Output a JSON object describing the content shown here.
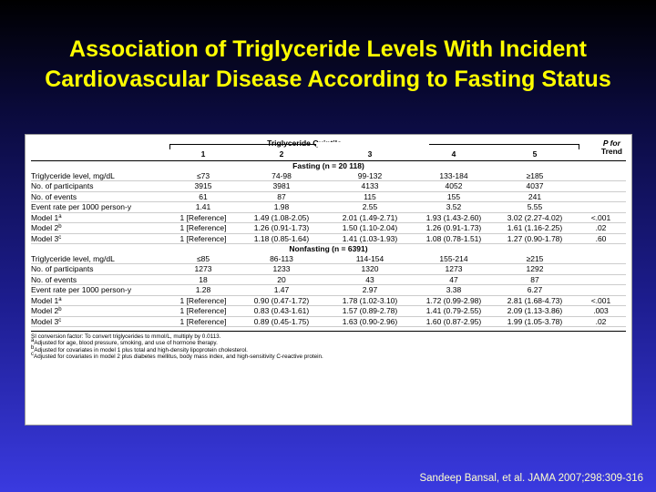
{
  "title": {
    "line1": "Association of Triglyceride Levels With Incident",
    "line2": "Cardiovascular Disease According to Fasting Status"
  },
  "table": {
    "quintile_header": "Triglyceride Quintile",
    "p_header_1": "P for",
    "p_header_2": "Trend",
    "columns": [
      "1",
      "2",
      "3",
      "4",
      "5"
    ],
    "sections": [
      {
        "header": "Fasting (n = 20 118)",
        "rows": [
          {
            "label": "Triglyceride level, mg/dL",
            "sup": "",
            "cells": [
              "≤73",
              "74-98",
              "99-132",
              "133-184",
              "≥185",
              ""
            ]
          },
          {
            "label": "No. of participants",
            "sup": "",
            "cells": [
              "3915",
              "3981",
              "4133",
              "4052",
              "4037",
              ""
            ]
          },
          {
            "label": "No. of events",
            "sup": "",
            "cells": [
              "61",
              "87",
              "115",
              "155",
              "241",
              ""
            ]
          },
          {
            "label": "Event rate per 1000 person-y",
            "sup": "",
            "cells": [
              "1.41",
              "1.98",
              "2.55",
              "3.52",
              "5.55",
              ""
            ]
          },
          {
            "label": "Model 1",
            "sup": "a",
            "cells": [
              "1 [Reference]",
              "1.49 (1.08-2.05)",
              "2.01 (1.49-2.71)",
              "1.93 (1.43-2.60)",
              "3.02 (2.27-4.02)",
              "<.001"
            ]
          },
          {
            "label": "Model 2",
            "sup": "b",
            "cells": [
              "1 [Reference]",
              "1.26 (0.91-1.73)",
              "1.50 (1.10-2.04)",
              "1.26 (0.91-1.73)",
              "1.61 (1.16-2.25)",
              ".02"
            ]
          },
          {
            "label": "Model 3",
            "sup": "c",
            "cells": [
              "1 [Reference]",
              "1.18 (0.85-1.64)",
              "1.41 (1.03-1.93)",
              "1.08 (0.78-1.51)",
              "1.27 (0.90-1.78)",
              ".60"
            ]
          }
        ]
      },
      {
        "header": "Nonfasting (n = 6391)",
        "rows": [
          {
            "label": "Triglyceride level, mg/dL",
            "sup": "",
            "cells": [
              "≤85",
              "86-113",
              "114-154",
              "155-214",
              "≥215",
              ""
            ]
          },
          {
            "label": "No. of participants",
            "sup": "",
            "cells": [
              "1273",
              "1233",
              "1320",
              "1273",
              "1292",
              ""
            ]
          },
          {
            "label": "No. of events",
            "sup": "",
            "cells": [
              "18",
              "20",
              "43",
              "47",
              "87",
              ""
            ]
          },
          {
            "label": "Event rate per 1000 person-y",
            "sup": "",
            "cells": [
              "1.28",
              "1.47",
              "2.97",
              "3.38",
              "6.27",
              ""
            ]
          },
          {
            "label": "Model 1",
            "sup": "a",
            "cells": [
              "1 [Reference]",
              "0.90 (0.47-1.72)",
              "1.78 (1.02-3.10)",
              "1.72 (0.99-2.98)",
              "2.81 (1.68-4.73)",
              "<.001"
            ]
          },
          {
            "label": "Model 2",
            "sup": "b",
            "cells": [
              "1 [Reference]",
              "0.83 (0.43-1.61)",
              "1.57 (0.89-2.78)",
              "1.41 (0.79-2.55)",
              "2.09 (1.13-3.86)",
              ".003"
            ]
          },
          {
            "label": "Model 3",
            "sup": "c",
            "cells": [
              "1 [Reference]",
              "0.89 (0.45-1.75)",
              "1.63 (0.90-2.96)",
              "1.60 (0.87-2.95)",
              "1.99 (1.05-3.78)",
              ".02"
            ]
          }
        ]
      }
    ],
    "footnotes": [
      {
        "mark": "",
        "text": "SI conversion factor: To convert triglycerides to mmol/L, multiply by 0.0113."
      },
      {
        "mark": "a",
        "text": "Adjusted for age, blood pressure, smoking, and use of hormone therapy."
      },
      {
        "mark": "b",
        "text": "Adjusted for covariates in model 1 plus total and high-density lipoprotein cholesterol."
      },
      {
        "mark": "c",
        "text": "Adjusted for covariates in model 2 plus diabetes mellitus, body mass index, and high-sensitivity C-reactive protein."
      }
    ]
  },
  "citation": "Sandeep Bansal, et al. JAMA 2007;298:309-316",
  "colors": {
    "title": "#ffff00",
    "background_top": "#000000",
    "background_bottom": "#3a3ae0",
    "citation": "#ffffcc"
  }
}
